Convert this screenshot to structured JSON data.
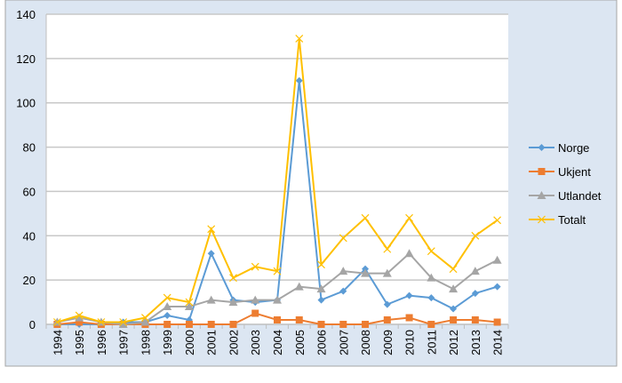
{
  "chart_data": {
    "type": "line",
    "title": "",
    "xlabel": "",
    "ylabel": "",
    "ylim": [
      0,
      140
    ],
    "yticks": [
      0,
      20,
      40,
      60,
      80,
      100,
      120,
      140
    ],
    "grid": true,
    "legend_position": "right",
    "categories": [
      "1994",
      "1995",
      "1996",
      "1997",
      "1998",
      "1999",
      "2000",
      "2001",
      "2002",
      "2003",
      "2004",
      "2005",
      "2006",
      "2007",
      "2008",
      "2009",
      "2010",
      "2011",
      "2012",
      "2013",
      "2014"
    ],
    "series": [
      {
        "name": "Norge",
        "color": "#5b9bd5",
        "marker": "diamond",
        "values": [
          0,
          0,
          0,
          1,
          1,
          4,
          2,
          32,
          11,
          10,
          11,
          110,
          11,
          15,
          25,
          9,
          13,
          12,
          7,
          14,
          17
        ]
      },
      {
        "name": "Ukjent",
        "color": "#ed7d31",
        "marker": "square",
        "values": [
          0,
          1,
          0,
          0,
          0,
          0,
          0,
          0,
          0,
          5,
          2,
          2,
          0,
          0,
          0,
          2,
          3,
          0,
          2,
          2,
          1
        ]
      },
      {
        "name": "Utlandet",
        "color": "#a5a5a5",
        "marker": "triangle",
        "values": [
          1,
          3,
          1,
          0,
          1,
          8,
          8,
          11,
          10,
          11,
          11,
          17,
          16,
          24,
          23,
          23,
          32,
          21,
          16,
          24,
          29
        ]
      },
      {
        "name": "Totalt",
        "color": "#ffc000",
        "marker": "x",
        "values": [
          1,
          4,
          1,
          1,
          3,
          12,
          10,
          43,
          21,
          26,
          24,
          129,
          27,
          39,
          48,
          34,
          48,
          33,
          25,
          40,
          47
        ]
      }
    ]
  }
}
